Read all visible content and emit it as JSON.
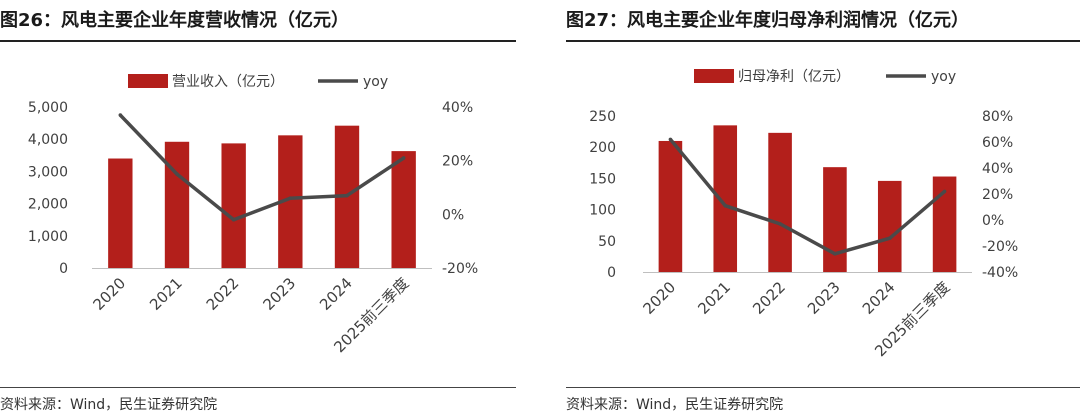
{
  "charts": [
    {
      "title": "图26：风电主要企业年度营收情况（亿元）",
      "source": "资料来源：Wind，民生证券研究院",
      "chart_data": {
        "type": "bar",
        "categories": [
          "2020",
          "2021",
          "2022",
          "2023",
          "2024",
          "2025前三季度"
        ],
        "series": [
          {
            "name": "营业收入（亿元）",
            "type": "bar",
            "axis": "left",
            "color": "#b31f1b",
            "values": [
              3400,
              3920,
              3870,
              4120,
              4420,
              3630
            ]
          },
          {
            "name": "yoy",
            "type": "line",
            "axis": "right",
            "color": "#4a4a4a",
            "values": [
              37,
              15,
              -2,
              6,
              7,
              21
            ]
          }
        ],
        "ylim": [
          0,
          5000
        ],
        "yticks": [
          "0",
          "1,000",
          "2,000",
          "3,000",
          "4,000",
          "5,000"
        ],
        "ylim_right": [
          -20,
          40
        ],
        "yticks_right": [
          "-20%",
          "0%",
          "20%",
          "40%"
        ],
        "legend_position": "top",
        "grid": false
      }
    },
    {
      "title": "图27：风电主要企业年度归母净利润情况（亿元）",
      "source": "资料来源：Wind，民生证券研究院",
      "chart_data": {
        "type": "bar",
        "categories": [
          "2020",
          "2021",
          "2022",
          "2023",
          "2024",
          "2025前三季度"
        ],
        "series": [
          {
            "name": "归母净利（亿元）",
            "type": "bar",
            "axis": "left",
            "color": "#b31f1b",
            "values": [
              210,
              235,
              223,
              168,
              146,
              153
            ]
          },
          {
            "name": "yoy",
            "type": "line",
            "axis": "right",
            "color": "#4a4a4a",
            "values": [
              62,
              11,
              -3,
              -26,
              -14,
              22
            ]
          }
        ],
        "ylim": [
          0,
          250
        ],
        "yticks": [
          "0",
          "50",
          "100",
          "150",
          "200",
          "250"
        ],
        "ylim_right": [
          -40,
          80
        ],
        "yticks_right": [
          "-40%",
          "-20%",
          "0%",
          "20%",
          "40%",
          "60%",
          "80%"
        ],
        "legend_position": "top",
        "grid": false
      }
    }
  ]
}
